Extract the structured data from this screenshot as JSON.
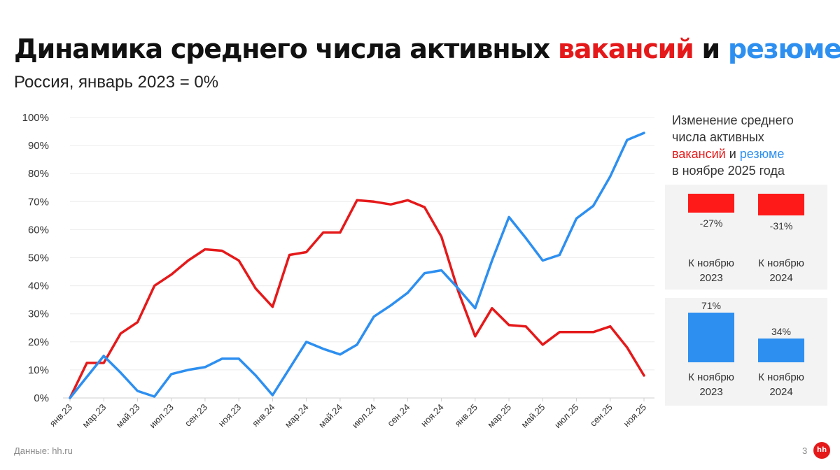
{
  "header": {
    "title_main": "Динамика среднего числа активных ",
    "title_red": "вакансий",
    "title_and": " и ",
    "title_blue": "резюме",
    "subtitle": "Россия, январь 2023 = 0%"
  },
  "chart_data": {
    "type": "line",
    "ylim": [
      0,
      100
    ],
    "yticks": [
      "0%",
      "10%",
      "20%",
      "30%",
      "40%",
      "50%",
      "60%",
      "70%",
      "80%",
      "90%",
      "100%"
    ],
    "xtick_labels": [
      "янв.23",
      "мар.23",
      "май.23",
      "июл.23",
      "сен.23",
      "ноя.23",
      "янв.24",
      "мар.24",
      "май.24",
      "июл.24",
      "сен.24",
      "ноя.24",
      "янв.25",
      "мар.25",
      "май.25",
      "июл.25",
      "сен.25",
      "ноя.25"
    ],
    "series": [
      {
        "name": "вакансии",
        "color": "#e5191a",
        "values": [
          0,
          12.5,
          12.5,
          23,
          27,
          40,
          44,
          49,
          53,
          52.5,
          49,
          39,
          32.5,
          51,
          52,
          59,
          59,
          70.5,
          70,
          69,
          70.5,
          68,
          57.5,
          38,
          22,
          32,
          26,
          25.5,
          19,
          23.5,
          23.5,
          23.5,
          25.5,
          18,
          8
        ]
      },
      {
        "name": "резюме",
        "color": "#2d8ff0",
        "values": [
          0,
          7.5,
          15,
          9,
          2.5,
          0.5,
          8.5,
          10,
          11,
          14,
          14,
          8,
          1,
          10.5,
          20,
          17.5,
          15.5,
          19,
          29,
          33,
          37.5,
          44.5,
          45.5,
          39,
          32,
          49,
          64.5,
          57,
          49,
          51,
          64,
          68.5,
          79,
          92,
          94.5
        ]
      }
    ]
  },
  "side_panel": {
    "heading_line1": "Изменение среднего",
    "heading_line2": "числа активных",
    "heading_red": "вакансий",
    "heading_and": " и ",
    "heading_blue": "резюме",
    "heading_line4": "в ноябре 2025 года",
    "vacancies": {
      "color": "#ff1a1a",
      "items": [
        {
          "value": -27,
          "label": "-27%",
          "caption_line1": "К ноябрю",
          "caption_line2": "2023"
        },
        {
          "value": -31,
          "label": "-31%",
          "caption_line1": "К ноябрю",
          "caption_line2": "2024"
        }
      ]
    },
    "resumes": {
      "color": "#2d8ff0",
      "items": [
        {
          "value": 71,
          "label": "71%",
          "caption_line1": "К ноябрю",
          "caption_line2": "2023"
        },
        {
          "value": 34,
          "label": "34%",
          "caption_line1": "К ноябрю",
          "caption_line2": "2024"
        }
      ]
    }
  },
  "footer": {
    "source": "Данные: hh.ru",
    "page_number": "3",
    "logo_text": "hh"
  }
}
